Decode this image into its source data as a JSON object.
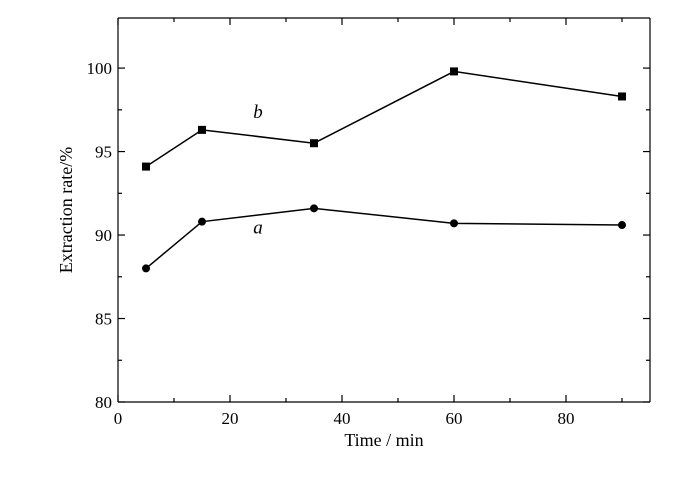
{
  "chart_data": {
    "type": "line",
    "title": "",
    "xlabel": "Time / min",
    "ylabel": "Extraction rate/%",
    "xlim": [
      0,
      95
    ],
    "ylim": [
      80,
      103
    ],
    "x_ticks": [
      0,
      20,
      40,
      60,
      80
    ],
    "x_tick_labels": [
      "0",
      "20",
      "40",
      "60",
      "80"
    ],
    "x_minor_ticks": [
      10,
      30,
      50,
      70,
      90
    ],
    "y_ticks": [
      80,
      85,
      90,
      95,
      100
    ],
    "y_tick_labels": [
      "80",
      "85",
      "90",
      "95",
      "100"
    ],
    "y_minor_ticks": [
      82.5,
      87.5,
      92.5,
      97.5
    ],
    "grid": false,
    "legend": "none",
    "series": [
      {
        "name": "b",
        "marker": "square",
        "x": [
          5,
          15,
          35,
          60,
          90
        ],
        "y": [
          94.1,
          96.3,
          95.5,
          99.8,
          98.3
        ],
        "label_at": [
          25,
          97.0
        ]
      },
      {
        "name": "a",
        "marker": "circle",
        "x": [
          5,
          15,
          35,
          60,
          90
        ],
        "y": [
          88.0,
          90.8,
          91.6,
          90.7,
          90.6
        ],
        "label_at": [
          25,
          90.1
        ]
      }
    ],
    "colors": {
      "line": "#000000",
      "marker": "#000000"
    }
  }
}
